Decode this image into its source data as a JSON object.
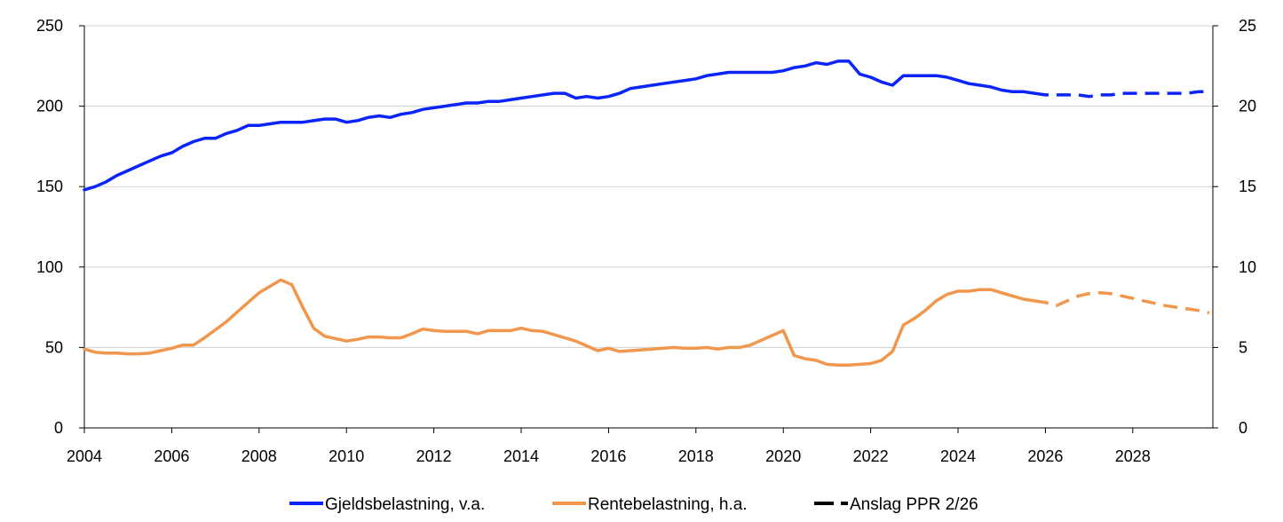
{
  "chart_data": {
    "type": "line",
    "title": "",
    "xlabel": "",
    "ylabel_left": "",
    "ylabel_right": "",
    "xlim": [
      2004,
      2029.75
    ],
    "ylim_left": [
      0,
      250
    ],
    "ylim_right": [
      0,
      25
    ],
    "x_ticks": [
      "2004",
      "2006",
      "2008",
      "2010",
      "2012",
      "2014",
      "2016",
      "2018",
      "2020",
      "2022",
      "2024",
      "2026",
      "2028"
    ],
    "y_ticks_left": [
      "0",
      "50",
      "100",
      "150",
      "200",
      "250"
    ],
    "y_ticks_right": [
      "0",
      "5",
      "10",
      "15",
      "20",
      "25"
    ],
    "grid": "horizontal",
    "legend_position": "bottom",
    "colors": {
      "debt": "#0b24fb",
      "interest": "#f0974d",
      "forecast": "#000000"
    },
    "forecast_start": 2025.75,
    "series": [
      {
        "name": "Gjeldsbelastning, v.a.",
        "axis": "left",
        "points": [
          [
            2004.0,
            148
          ],
          [
            2004.25,
            150
          ],
          [
            2004.5,
            153
          ],
          [
            2004.75,
            157
          ],
          [
            2005.0,
            160
          ],
          [
            2005.25,
            163
          ],
          [
            2005.5,
            166
          ],
          [
            2005.75,
            169
          ],
          [
            2006.0,
            171
          ],
          [
            2006.25,
            175
          ],
          [
            2006.5,
            178
          ],
          [
            2006.75,
            180
          ],
          [
            2007.0,
            180
          ],
          [
            2007.25,
            183
          ],
          [
            2007.5,
            185
          ],
          [
            2007.75,
            188
          ],
          [
            2008.0,
            188
          ],
          [
            2008.25,
            189
          ],
          [
            2008.5,
            190
          ],
          [
            2008.75,
            190
          ],
          [
            2009.0,
            190
          ],
          [
            2009.25,
            191
          ],
          [
            2009.5,
            192
          ],
          [
            2009.75,
            192
          ],
          [
            2010.0,
            190
          ],
          [
            2010.25,
            191
          ],
          [
            2010.5,
            193
          ],
          [
            2010.75,
            194
          ],
          [
            2011.0,
            193
          ],
          [
            2011.25,
            195
          ],
          [
            2011.5,
            196
          ],
          [
            2011.75,
            198
          ],
          [
            2012.0,
            199
          ],
          [
            2012.25,
            200
          ],
          [
            2012.5,
            201
          ],
          [
            2012.75,
            202
          ],
          [
            2013.0,
            202
          ],
          [
            2013.25,
            203
          ],
          [
            2013.5,
            203
          ],
          [
            2013.75,
            204
          ],
          [
            2014.0,
            205
          ],
          [
            2014.25,
            206
          ],
          [
            2014.5,
            207
          ],
          [
            2014.75,
            208
          ],
          [
            2015.0,
            208
          ],
          [
            2015.25,
            205
          ],
          [
            2015.5,
            206
          ],
          [
            2015.75,
            205
          ],
          [
            2016.0,
            206
          ],
          [
            2016.25,
            208
          ],
          [
            2016.5,
            211
          ],
          [
            2016.75,
            212
          ],
          [
            2017.0,
            213
          ],
          [
            2017.25,
            214
          ],
          [
            2017.5,
            215
          ],
          [
            2017.75,
            216
          ],
          [
            2018.0,
            217
          ],
          [
            2018.25,
            219
          ],
          [
            2018.5,
            220
          ],
          [
            2018.75,
            221
          ],
          [
            2019.0,
            221
          ],
          [
            2019.25,
            221
          ],
          [
            2019.5,
            221
          ],
          [
            2019.75,
            221
          ],
          [
            2020.0,
            222
          ],
          [
            2020.25,
            224
          ],
          [
            2020.5,
            225
          ],
          [
            2020.75,
            227
          ],
          [
            2021.0,
            226
          ],
          [
            2021.25,
            228
          ],
          [
            2021.5,
            228
          ],
          [
            2021.75,
            220
          ],
          [
            2022.0,
            218
          ],
          [
            2022.25,
            215
          ],
          [
            2022.5,
            213
          ],
          [
            2022.75,
            219
          ],
          [
            2023.0,
            219
          ],
          [
            2023.25,
            219
          ],
          [
            2023.5,
            219
          ],
          [
            2023.75,
            218
          ],
          [
            2024.0,
            216
          ],
          [
            2024.25,
            214
          ],
          [
            2024.5,
            213
          ],
          [
            2024.75,
            212
          ],
          [
            2025.0,
            210
          ],
          [
            2025.25,
            209
          ],
          [
            2025.5,
            209
          ],
          [
            2025.75,
            208
          ],
          [
            2026.0,
            207
          ],
          [
            2026.25,
            207
          ],
          [
            2026.5,
            207
          ],
          [
            2026.75,
            207
          ],
          [
            2027.0,
            206
          ],
          [
            2027.25,
            207
          ],
          [
            2027.5,
            207
          ],
          [
            2027.75,
            208
          ],
          [
            2028.0,
            208
          ],
          [
            2028.25,
            208
          ],
          [
            2028.5,
            208
          ],
          [
            2028.75,
            208
          ],
          [
            2029.0,
            208
          ],
          [
            2029.25,
            208
          ],
          [
            2029.5,
            209
          ],
          [
            2029.75,
            209
          ]
        ]
      },
      {
        "name": "Rentebelastning, h.a.",
        "axis": "right",
        "points": [
          [
            2004.0,
            4.9
          ],
          [
            2004.25,
            4.7
          ],
          [
            2004.5,
            4.65
          ],
          [
            2004.75,
            4.65
          ],
          [
            2005.0,
            4.6
          ],
          [
            2005.25,
            4.6
          ],
          [
            2005.5,
            4.65
          ],
          [
            2005.75,
            4.8
          ],
          [
            2006.0,
            4.95
          ],
          [
            2006.25,
            5.15
          ],
          [
            2006.5,
            5.15
          ],
          [
            2006.75,
            5.6
          ],
          [
            2007.0,
            6.1
          ],
          [
            2007.25,
            6.6
          ],
          [
            2007.5,
            7.2
          ],
          [
            2007.75,
            7.8
          ],
          [
            2008.0,
            8.4
          ],
          [
            2008.25,
            8.8
          ],
          [
            2008.5,
            9.2
          ],
          [
            2008.75,
            8.9
          ],
          [
            2009.0,
            7.5
          ],
          [
            2009.25,
            6.2
          ],
          [
            2009.5,
            5.7
          ],
          [
            2009.75,
            5.55
          ],
          [
            2010.0,
            5.4
          ],
          [
            2010.25,
            5.5
          ],
          [
            2010.5,
            5.65
          ],
          [
            2010.75,
            5.65
          ],
          [
            2011.0,
            5.6
          ],
          [
            2011.25,
            5.6
          ],
          [
            2011.5,
            5.85
          ],
          [
            2011.75,
            6.15
          ],
          [
            2012.0,
            6.05
          ],
          [
            2012.25,
            6.0
          ],
          [
            2012.5,
            6.0
          ],
          [
            2012.75,
            6.0
          ],
          [
            2013.0,
            5.85
          ],
          [
            2013.25,
            6.05
          ],
          [
            2013.5,
            6.05
          ],
          [
            2013.75,
            6.05
          ],
          [
            2014.0,
            6.2
          ],
          [
            2014.25,
            6.05
          ],
          [
            2014.5,
            6.0
          ],
          [
            2014.75,
            5.8
          ],
          [
            2015.0,
            5.6
          ],
          [
            2015.25,
            5.4
          ],
          [
            2015.5,
            5.1
          ],
          [
            2015.75,
            4.8
          ],
          [
            2016.0,
            4.95
          ],
          [
            2016.25,
            4.75
          ],
          [
            2016.5,
            4.8
          ],
          [
            2016.75,
            4.85
          ],
          [
            2017.0,
            4.9
          ],
          [
            2017.25,
            4.95
          ],
          [
            2017.5,
            5.0
          ],
          [
            2017.75,
            4.95
          ],
          [
            2018.0,
            4.95
          ],
          [
            2018.25,
            5.0
          ],
          [
            2018.5,
            4.9
          ],
          [
            2018.75,
            5.0
          ],
          [
            2019.0,
            5.0
          ],
          [
            2019.25,
            5.15
          ],
          [
            2019.5,
            5.45
          ],
          [
            2019.75,
            5.75
          ],
          [
            2020.0,
            6.05
          ],
          [
            2020.25,
            4.5
          ],
          [
            2020.5,
            4.3
          ],
          [
            2020.75,
            4.2
          ],
          [
            2021.0,
            3.95
          ],
          [
            2021.25,
            3.9
          ],
          [
            2021.5,
            3.9
          ],
          [
            2021.75,
            3.95
          ],
          [
            2022.0,
            4.0
          ],
          [
            2022.25,
            4.2
          ],
          [
            2022.5,
            4.75
          ],
          [
            2022.75,
            6.4
          ],
          [
            2023.0,
            6.8
          ],
          [
            2023.25,
            7.3
          ],
          [
            2023.5,
            7.9
          ],
          [
            2023.75,
            8.3
          ],
          [
            2024.0,
            8.5
          ],
          [
            2024.25,
            8.5
          ],
          [
            2024.5,
            8.6
          ],
          [
            2024.75,
            8.6
          ],
          [
            2025.0,
            8.4
          ],
          [
            2025.25,
            8.2
          ],
          [
            2025.5,
            8.0
          ],
          [
            2025.75,
            7.9
          ],
          [
            2026.0,
            7.8
          ],
          [
            2026.25,
            7.6
          ],
          [
            2026.5,
            7.9
          ],
          [
            2026.75,
            8.2
          ],
          [
            2027.0,
            8.35
          ],
          [
            2027.25,
            8.4
          ],
          [
            2027.5,
            8.35
          ],
          [
            2027.75,
            8.2
          ],
          [
            2028.0,
            8.05
          ],
          [
            2028.25,
            7.9
          ],
          [
            2028.5,
            7.75
          ],
          [
            2028.75,
            7.6
          ],
          [
            2029.0,
            7.5
          ],
          [
            2029.25,
            7.4
          ],
          [
            2029.5,
            7.3
          ],
          [
            2029.75,
            7.15
          ]
        ]
      }
    ],
    "legend": [
      {
        "label": "Gjeldsbelastning, v.a.",
        "style": "solid",
        "color": "#0b24fb"
      },
      {
        "label": "Rentebelastning, h.a.",
        "style": "solid",
        "color": "#f0974d"
      },
      {
        "label": "Anslag PPR 2/26",
        "style": "dashed",
        "color": "#000000"
      }
    ]
  }
}
